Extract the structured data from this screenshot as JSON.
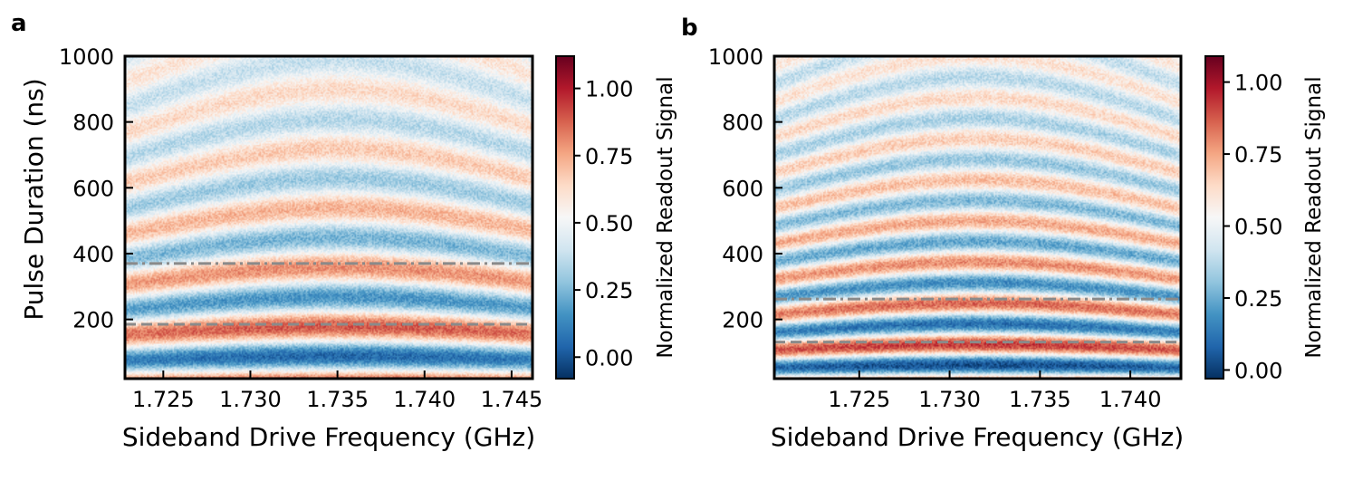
{
  "chart_data": [
    {
      "type": "heatmap",
      "panel": "a",
      "xlabel": "Sideband Drive Frequency (GHz)",
      "ylabel": "Pulse Duration (ns)",
      "xlim": [
        1.7228,
        1.7462
      ],
      "ylim": [
        20,
        1000
      ],
      "xticks": [
        1.725,
        1.73,
        1.735,
        1.74,
        1.745
      ],
      "xtick_labels": [
        "1.725",
        "1.730",
        "1.735",
        "1.740",
        "1.745"
      ],
      "yticks": [
        200,
        400,
        600,
        800,
        1000
      ],
      "ytick_labels": [
        "200",
        "400",
        "600",
        "800",
        "1000"
      ],
      "colorbar": {
        "label": "Normalized Readout Signal",
        "range": [
          -0.08,
          1.12
        ],
        "ticks": [
          0.0,
          0.25,
          0.5,
          0.75,
          1.0
        ],
        "tick_labels": [
          "0.00",
          "0.25",
          "0.50",
          "0.75",
          "1.00"
        ],
        "colormap": "RdBu_r"
      },
      "resonance_center_ghz": 1.735,
      "oscillation_period_ns": 180,
      "reference_lines": [
        {
          "y": 370,
          "style": "dash-dot",
          "color": "#8a8a8a"
        },
        {
          "y": 185,
          "style": "dashed",
          "color": "#8a8a8a"
        }
      ]
    },
    {
      "type": "heatmap",
      "panel": "b",
      "xlabel": "Sideband Drive Frequency (GHz)",
      "ylabel": "",
      "xlim": [
        1.7203,
        1.7428
      ],
      "ylim": [
        20,
        1000
      ],
      "xticks": [
        1.725,
        1.73,
        1.735,
        1.74
      ],
      "xtick_labels": [
        "1.725",
        "1.730",
        "1.735",
        "1.740"
      ],
      "yticks": [
        200,
        400,
        600,
        800,
        1000
      ],
      "ytick_labels": [
        "200",
        "400",
        "600",
        "800",
        "1000"
      ],
      "colorbar": {
        "label": "Normalized Readout Signal",
        "range": [
          -0.03,
          1.09
        ],
        "ticks": [
          0.0,
          0.25,
          0.5,
          0.75,
          1.0
        ],
        "tick_labels": [
          "0.00",
          "0.25",
          "0.50",
          "0.75",
          "1.00"
        ],
        "colormap": "RdBu_r"
      },
      "resonance_center_ghz": 1.7315,
      "oscillation_period_ns": 125,
      "reference_lines": [
        {
          "y": 262,
          "style": "dash-dot",
          "color": "#8a8a8a"
        },
        {
          "y": 131,
          "style": "dashed",
          "color": "#8a8a8a"
        }
      ]
    }
  ]
}
